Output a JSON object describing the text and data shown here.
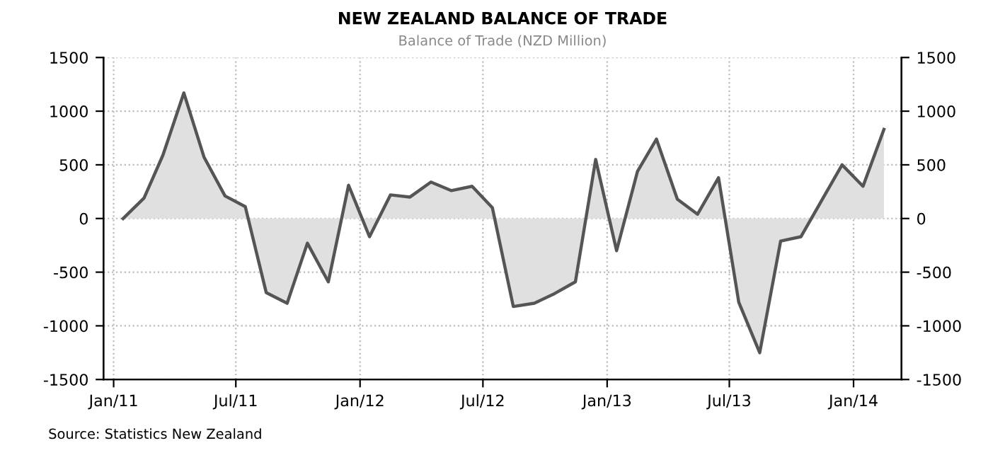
{
  "chart_data": {
    "type": "area",
    "title": "NEW ZEALAND BALANCE OF TRADE",
    "subtitle": "Balance of Trade (NZD Million)",
    "x": [
      "2011-01-15",
      "2011-02-15",
      "2011-03-15",
      "2011-04-15",
      "2011-05-15",
      "2011-06-15",
      "2011-07-15",
      "2011-08-15",
      "2011-09-15",
      "2011-10-15",
      "2011-11-15",
      "2011-12-15",
      "2012-01-15",
      "2012-02-15",
      "2012-03-15",
      "2012-04-15",
      "2012-05-15",
      "2012-06-15",
      "2012-07-15",
      "2012-08-15",
      "2012-09-15",
      "2012-10-15",
      "2012-11-15",
      "2012-12-15",
      "2013-01-15",
      "2013-02-15",
      "2013-03-15",
      "2013-04-15",
      "2013-05-15",
      "2013-06-15",
      "2013-07-15",
      "2013-08-15",
      "2013-09-15",
      "2013-10-15",
      "2013-11-15",
      "2013-12-15",
      "2014-01-15",
      "2014-02-15"
    ],
    "series": [
      {
        "color": "#555555",
        "values": [
          0,
          190,
          590,
          1170,
          570,
          210,
          110,
          -690,
          -790,
          -230,
          -590,
          310,
          -170,
          220,
          200,
          340,
          260,
          300,
          100,
          -820,
          -790,
          -700,
          -590,
          550,
          -300,
          440,
          740,
          180,
          40,
          380,
          -780,
          -1250,
          -210,
          -170,
          170,
          500,
          300,
          830
        ]
      }
    ],
    "xlim": [
      "2010-12-17",
      "2014-03-13"
    ],
    "xticks": [
      {
        "value": "2011-01-01",
        "label": "Jan/11"
      },
      {
        "value": "2011-07-01",
        "label": "Jul/11"
      },
      {
        "value": "2012-01-01",
        "label": "Jan/12"
      },
      {
        "value": "2012-07-01",
        "label": "Jul/12"
      },
      {
        "value": "2013-01-01",
        "label": "Jan/13"
      },
      {
        "value": "2013-07-01",
        "label": "Jul/13"
      },
      {
        "value": "2014-01-01",
        "label": "Jan/14"
      }
    ],
    "ylim": [
      -1500,
      1500
    ],
    "yticks": [
      -1500,
      -1000,
      -500,
      0,
      500,
      1000,
      1500
    ],
    "y2lim": [
      -1500,
      1500
    ],
    "y2ticks": [
      -1500,
      -1000,
      -500,
      0,
      500,
      1000,
      1500
    ],
    "grid": true,
    "legend": false,
    "annotations": [
      "Source: Statistics New Zealand"
    ]
  }
}
